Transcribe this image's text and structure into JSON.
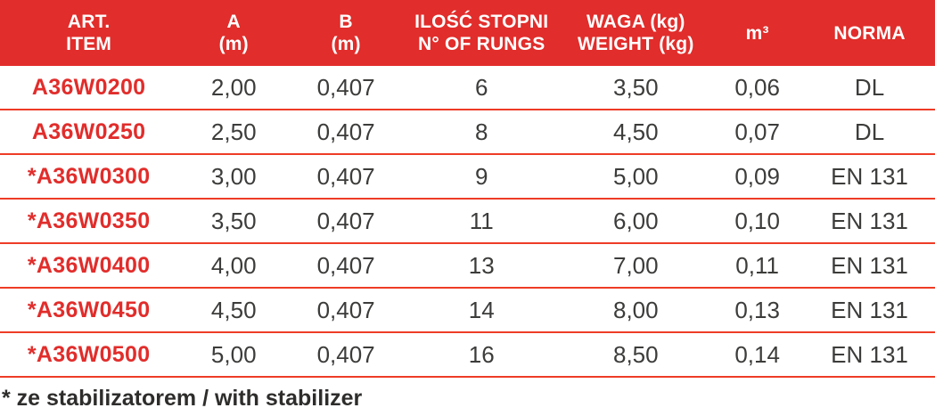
{
  "colors": {
    "header_background": "#e12d2b",
    "header_text": "#ffffff",
    "article_code_red": "#e12d2b",
    "row_divider_red": "#ee3c26",
    "body_text": "#3c3c3b",
    "footnote_text": "#2e2d2c"
  },
  "header": {
    "columns": [
      {
        "line1": "ART.",
        "line2": "ITEM"
      },
      {
        "line1": "A",
        "line2": "(m)"
      },
      {
        "line1": "B",
        "line2": "(m)"
      },
      {
        "line1": "ILOŚĆ STOPNI",
        "line2": "N° OF RUNGS"
      },
      {
        "line1": "WAGA (kg)",
        "line2": "WEIGHT (kg)"
      },
      {
        "line1": "m³",
        "line2": ""
      },
      {
        "line1": "NORMA",
        "line2": ""
      }
    ]
  },
  "rows": [
    {
      "item": "A36W0200",
      "a": "2,00",
      "b": "0,407",
      "rungs": "6",
      "weight": "3,50",
      "m3": "0,06",
      "norma": "DL"
    },
    {
      "item": "A36W0250",
      "a": "2,50",
      "b": "0,407",
      "rungs": "8",
      "weight": "4,50",
      "m3": "0,07",
      "norma": "DL"
    },
    {
      "item": "*A36W0300",
      "a": "3,00",
      "b": "0,407",
      "rungs": "9",
      "weight": "5,00",
      "m3": "0,09",
      "norma": "EN 131"
    },
    {
      "item": "*A36W0350",
      "a": "3,50",
      "b": "0,407",
      "rungs": "11",
      "weight": "6,00",
      "m3": "0,10",
      "norma": "EN 131"
    },
    {
      "item": "*A36W0400",
      "a": "4,00",
      "b": "0,407",
      "rungs": "13",
      "weight": "7,00",
      "m3": "0,11",
      "norma": "EN 131"
    },
    {
      "item": "*A36W0450",
      "a": "4,50",
      "b": "0,407",
      "rungs": "14",
      "weight": "8,00",
      "m3": "0,13",
      "norma": "EN 131"
    },
    {
      "item": "*A36W0500",
      "a": "5,00",
      "b": "0,407",
      "rungs": "16",
      "weight": "8,50",
      "m3": "0,14",
      "norma": "EN 131"
    }
  ],
  "footnote": {
    "text": "* ze stabilizatorem / with stabilizer"
  }
}
